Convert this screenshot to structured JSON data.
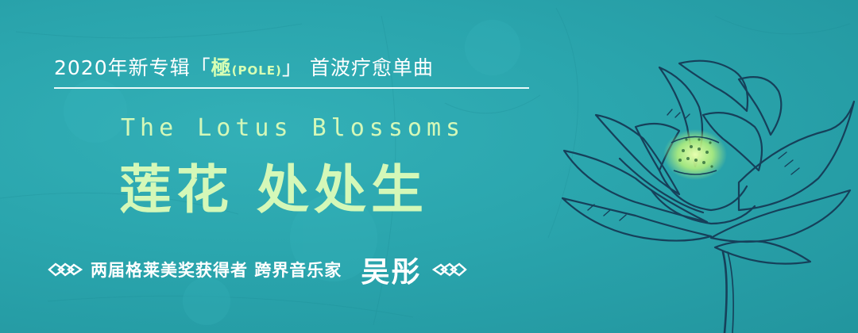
{
  "banner": {
    "headline_prefix": "2020年新专辑「",
    "album_name": "極",
    "album_suffix": "(POLE)",
    "headline_suffix": "」 首波疗愈单曲",
    "title_en": "The Lotus Blossoms",
    "title_cn": "莲花 处处生",
    "tagline": "两届格莱美奖获得者 跨界音乐家",
    "artist": "吴彤"
  },
  "colors": {
    "background": "#2aa5ad",
    "title_accent": "#d4f8b8",
    "flower_center": "#c8ff7a",
    "line_art": "#16405a"
  },
  "icons": [
    "chain-knot-icon-left",
    "chain-knot-icon-right",
    "lotus-illustration"
  ]
}
